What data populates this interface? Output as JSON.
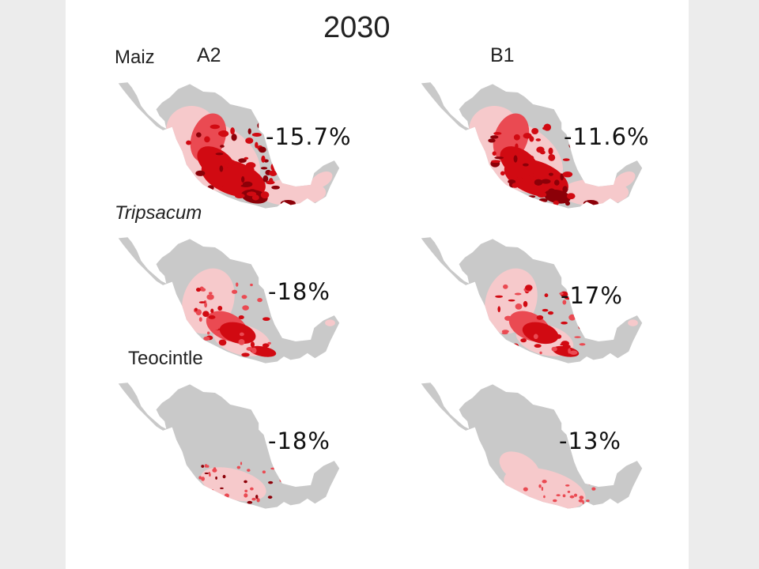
{
  "title": "2030",
  "scenarios": [
    "A2",
    "B1"
  ],
  "species": [
    "Maiz",
    "Tripsacum",
    "Teocintle"
  ],
  "changes": {
    "maiz": {
      "A2": "-15.7%",
      "B1": "-11.6%"
    },
    "tripsacum": {
      "A2": "-18%",
      "B1": "-17%"
    },
    "teocintle": {
      "A2": "-18%",
      "B1": "-13%"
    }
  },
  "colors": {
    "land": "#c9c9c9",
    "suitable_light": "#f6c9cb",
    "suitable_mid": "#ea4a52",
    "suitable_high": "#d10a12",
    "suitable_max": "#8c0008"
  }
}
